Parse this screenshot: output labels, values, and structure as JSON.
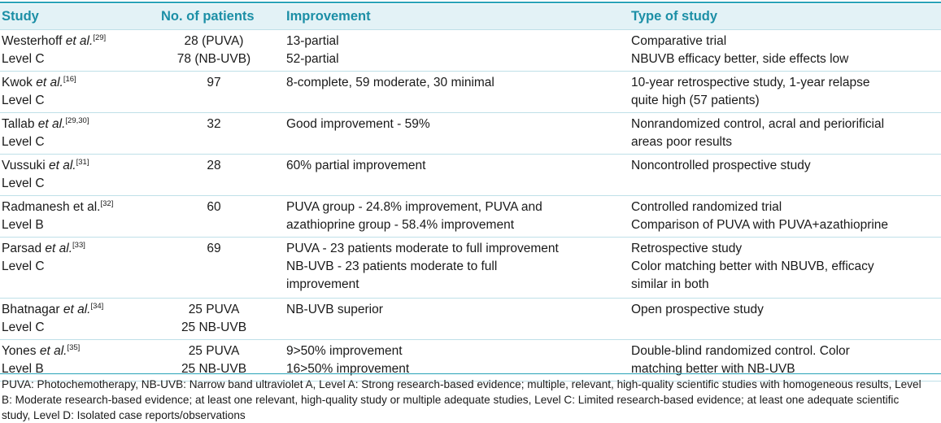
{
  "table": {
    "headers": [
      "Study",
      "No. of patients",
      "Improvement",
      "Type of study"
    ],
    "rows": [
      {
        "author": "Westerhoff",
        "etal": " et al.",
        "ref": "[29]",
        "level": "Level C",
        "patients": [
          "28 (PUVA)",
          "78 (NB-UVB)"
        ],
        "improvement": [
          "13-partial",
          "52-partial"
        ],
        "type": [
          "Comparative trial",
          "NBUVB efficacy better, side effects low"
        ]
      },
      {
        "author": "Kwok",
        "etal": " et al.",
        "ref": "[16]",
        "level": "Level C",
        "patients": [
          "97"
        ],
        "improvement": [
          "8-complete, 59 moderate, 30 minimal"
        ],
        "type": [
          "10-year retrospective study, 1-year relapse",
          "quite high (57 patients)"
        ]
      },
      {
        "author": "Tallab",
        "etal": " et al.",
        "ref": "[29,30]",
        "level": "Level C",
        "patients": [
          "32"
        ],
        "improvement": [
          "Good improvement - 59%"
        ],
        "type": [
          "Nonrandomized control, acral and periorificial",
          "areas poor results"
        ]
      },
      {
        "author": "Vussuki",
        "etal": " et al.",
        "ref": "[31]",
        "level": "Level C",
        "patients": [
          "28"
        ],
        "improvement": [
          "60% partial improvement"
        ],
        "type": [
          "Noncontrolled prospective study"
        ]
      },
      {
        "author": "Radmanesh et al.",
        "etal": "",
        "ref": "[32]",
        "level": "Level B",
        "patients": [
          "60"
        ],
        "improvement": [
          "PUVA group - 24.8% improvement, PUVA and",
          "azathioprine group - 58.4% improvement"
        ],
        "type": [
          "Controlled randomized trial",
          "Comparison of PUVA with PUVA+azathioprine"
        ]
      },
      {
        "author": "Parsad",
        "etal": " et al.",
        "ref": "[33]",
        "level": "Level C",
        "patients": [
          "69"
        ],
        "improvement": [
          "PUVA - 23 patients moderate to full improvement",
          "NB-UVB - 23 patients moderate to full",
          "improvement"
        ],
        "type": [
          "Retrospective study",
          "Color matching better with NBUVB, efficacy",
          "similar in both"
        ]
      },
      {
        "author": "Bhatnagar",
        "etal": " et al.",
        "ref": "[34]",
        "level": "Level C",
        "patients": [
          "25 PUVA",
          "25 NB-UVB"
        ],
        "improvement": [
          "NB-UVB superior"
        ],
        "type": [
          "Open prospective study"
        ]
      },
      {
        "author": "Yones",
        "etal": " et al.",
        "ref": "[35]",
        "level": "Level B",
        "patients": [
          "25 PUVA",
          "25 NB-UVB"
        ],
        "improvement": [
          "9>50% improvement",
          "16>50% improvement"
        ],
        "type": [
          "Double-blind randomized control. Color",
          "matching better with NB-UVB"
        ]
      }
    ]
  },
  "footnote": "PUVA: Photochemotherapy, NB-UVB: Narrow band ultraviolet A, Level A: Strong research-based evidence; multiple, relevant, high-quality scientific studies with homogeneous results, Level B: Moderate research-based evidence; at least one relevant, high-quality study or multiple adequate studies, Level C: Limited research-based evidence; at least one adequate scientific study, Level D: Isolated case reports/observations"
}
